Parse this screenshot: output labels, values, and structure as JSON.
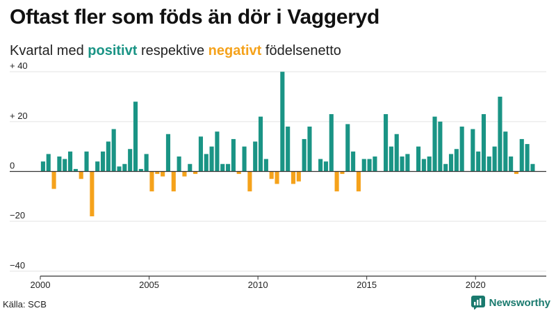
{
  "header": {
    "title": "Oftast fler som föds än dör i Vaggeryd",
    "subtitle_start": "Kvartal med ",
    "subtitle_pos": "positivt",
    "subtitle_mid": " respektive ",
    "subtitle_neg": "negativt",
    "subtitle_end": " födelsenetto"
  },
  "footer": {
    "source": "Källa: SCB",
    "brand": "Newsworthy"
  },
  "colors": {
    "positive": "#1a9485",
    "negative": "#f5a21b",
    "grid": "#e3e3e3",
    "axis": "#333333",
    "brand": "#1a7a6e"
  },
  "chart_data": {
    "type": "bar",
    "title": "Oftast fler som föds än dör i Vaggeryd",
    "subtitle": "Kvartal med positivt respektive negativt födelsenetto",
    "xlabel": "",
    "ylabel": "",
    "ylim": [
      -42,
      42
    ],
    "xlim": [
      2000,
      2023.25
    ],
    "x_ticks": [
      {
        "value": 2000,
        "label": "2000"
      },
      {
        "value": 2005,
        "label": "2005"
      },
      {
        "value": 2010,
        "label": "2010"
      },
      {
        "value": 2015,
        "label": "2015"
      },
      {
        "value": 2020,
        "label": "2020"
      }
    ],
    "y_ticks": [
      {
        "value": 40,
        "label": "+ 40"
      },
      {
        "value": 20,
        "label": "+ 20"
      },
      {
        "value": 0,
        "label": "0"
      },
      {
        "value": -20,
        "label": "−20"
      },
      {
        "value": -40,
        "label": "−40"
      }
    ],
    "grid": true,
    "legend": "none",
    "start_year": 2000,
    "quarters_per_year": 4,
    "values": [
      4,
      7,
      -7,
      6,
      5,
      8,
      1,
      -3,
      8,
      -18,
      4,
      8,
      12,
      17,
      2,
      3,
      9,
      28,
      1,
      7,
      -8,
      -1,
      -2,
      15,
      -8,
      6,
      -2,
      3,
      -1,
      14,
      7,
      10,
      16,
      3,
      3,
      13,
      -1,
      10,
      -8,
      12,
      22,
      5,
      -3,
      -5,
      40,
      18,
      -5,
      -4,
      13,
      18,
      0,
      5,
      4,
      23,
      -8,
      -1,
      19,
      8,
      -8,
      5,
      5,
      6,
      0,
      23,
      10,
      15,
      6,
      7,
      0,
      10,
      5,
      6,
      22,
      20,
      3,
      7,
      9,
      18,
      0,
      17,
      8,
      23,
      6,
      10,
      30,
      16,
      6,
      -1,
      13,
      11,
      3
    ]
  }
}
